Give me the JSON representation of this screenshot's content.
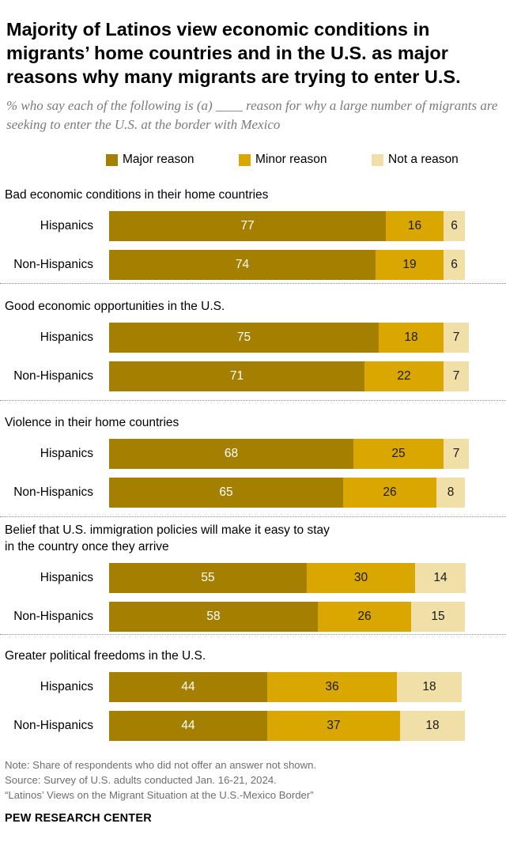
{
  "title": "Majority of Latinos view economic conditions in migrants’ home countries and in the U.S. as major reasons why many migrants are trying to enter U.S.",
  "subtitle": "% who say each of the following is (a) ____ reason for why a large number of migrants are seeking to enter the U.S. at the border with Mexico",
  "legend": {
    "major": "Major reason",
    "minor": "Minor reason",
    "none": "Not a reason"
  },
  "colors": {
    "major": "#a47f00",
    "minor": "#d9a700",
    "none": "#f0dfa6"
  },
  "notes": {
    "note": "Note: Share of respondents who did not offer an answer not shown.",
    "source": "Source: Survey of U.S. adults conducted Jan. 16-21, 2024.",
    "report": "“Latinos’ Views on the Migrant Situation at the U.S.-Mexico Border”"
  },
  "brand": "PEW RESEARCH CENTER",
  "chart_data": {
    "type": "bar",
    "orientation": "horizontal",
    "stacked": true,
    "series_names": [
      "Major reason",
      "Minor reason",
      "Not a reason"
    ],
    "groups": [
      {
        "title": "Bad economic conditions in their home countries",
        "rows": [
          {
            "label": "Hispanics",
            "values": [
              77,
              16,
              6
            ]
          },
          {
            "label": "Non-Hispanics",
            "values": [
              74,
              19,
              6
            ]
          }
        ]
      },
      {
        "title": "Good economic opportunities in the U.S.",
        "rows": [
          {
            "label": "Hispanics",
            "values": [
              75,
              18,
              7
            ]
          },
          {
            "label": "Non-Hispanics",
            "values": [
              71,
              22,
              7
            ]
          }
        ]
      },
      {
        "title": "Violence in their home countries",
        "rows": [
          {
            "label": "Hispanics",
            "values": [
              68,
              25,
              7
            ]
          },
          {
            "label": "Non-Hispanics",
            "values": [
              65,
              26,
              8
            ]
          }
        ]
      },
      {
        "title": "Belief that U.S. immigration policies will make it easy to stay in the country once they arrive",
        "rows": [
          {
            "label": "Hispanics",
            "values": [
              55,
              30,
              14
            ]
          },
          {
            "label": "Non-Hispanics",
            "values": [
              58,
              26,
              15
            ]
          }
        ]
      },
      {
        "title": "Greater political freedoms in the U.S.",
        "rows": [
          {
            "label": "Hispanics",
            "values": [
              44,
              36,
              18
            ]
          },
          {
            "label": "Non-Hispanics",
            "values": [
              44,
              37,
              18
            ]
          }
        ]
      }
    ]
  }
}
